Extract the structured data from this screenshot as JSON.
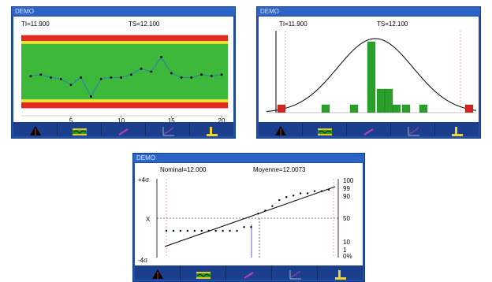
{
  "windows": {
    "control": {
      "title": "DEMO",
      "ti_label": "TI=11.900",
      "ts_label": "TS=12.100",
      "x_ticks": [
        "5",
        "10",
        "15",
        "20"
      ]
    },
    "histogram": {
      "title": "DEMO",
      "ti_label": "TI=11.900",
      "ts_label": "TS=12.100"
    },
    "henry": {
      "title": "DEMO",
      "nominal_label": "Nominal=12.000",
      "mean_label": "Moyenne=12.0073",
      "left_top": "+4σ",
      "left_x": "X",
      "left_bottom": "-4σ",
      "right_ticks": [
        "100",
        "99",
        "90",
        "50",
        "10",
        "1",
        "0%"
      ]
    }
  },
  "toolbar": {
    "buttons": [
      "triangle-icon",
      "control-chart-icon",
      "pencil-icon",
      "trend-icon",
      "capability-icon"
    ]
  },
  "chart_data": [
    {
      "type": "line",
      "x": [
        1,
        2,
        3,
        4,
        5,
        6,
        7,
        8,
        9,
        10,
        11,
        12,
        13,
        14,
        15,
        16,
        17,
        18,
        19,
        20
      ],
      "values": [
        11.985,
        11.99,
        11.98,
        11.975,
        11.955,
        11.98,
        11.915,
        11.975,
        11.98,
        11.98,
        11.99,
        12.01,
        12.0,
        12.05,
        11.995,
        11.98,
        11.98,
        11.99,
        11.985,
        11.99
      ],
      "ylim": [
        11.86,
        12.14
      ],
      "zones": {
        "red_outer": [
          11.875,
          11.895
        ],
        "yellow": [
          11.895,
          11.905
        ],
        "green": [
          11.905,
          12.095
        ],
        "yellow_top": [
          12.095,
          12.105
        ],
        "red_top": [
          12.105,
          12.125
        ]
      },
      "x_ticks": [
        5,
        10,
        15,
        20
      ]
    },
    {
      "type": "bar",
      "categories": [
        "out_low",
        "b1",
        "b2",
        "b3",
        "b4",
        "b5",
        "b6",
        "b7",
        "b8",
        "b9",
        "out_high"
      ],
      "values": [
        1,
        1,
        0,
        0,
        1,
        9,
        3,
        3,
        1,
        1,
        1
      ],
      "colors": [
        "#d81e1e",
        "#2aa02a",
        "#2aa02a",
        "#2aa02a",
        "#2aa02a",
        "#2aa02a",
        "#2aa02a",
        "#2aa02a",
        "#2aa02a",
        "#2aa02a",
        "#d81e1e"
      ]
    },
    {
      "type": "scatter",
      "y_pct_ticks": [
        100,
        99,
        90,
        50,
        10,
        1,
        0
      ],
      "points": [
        [
          12.0,
          22
        ],
        [
          12.002,
          22
        ],
        [
          12.004,
          22
        ],
        [
          12.006,
          22
        ],
        [
          12.008,
          22
        ],
        [
          12.01,
          25
        ],
        [
          12.012,
          25
        ],
        [
          12.014,
          25
        ],
        [
          12.016,
          25
        ],
        [
          12.018,
          25
        ],
        [
          12.02,
          25
        ],
        [
          12.022,
          30
        ],
        [
          12.024,
          30
        ],
        [
          12.026,
          48
        ],
        [
          12.028,
          52
        ],
        [
          12.03,
          58
        ],
        [
          12.032,
          66
        ],
        [
          12.034,
          70
        ],
        [
          12.036,
          72
        ],
        [
          12.038,
          75
        ],
        [
          12.04,
          75
        ],
        [
          12.042,
          78
        ],
        [
          12.044,
          78
        ],
        [
          12.046,
          80
        ]
      ],
      "regression_line": true
    }
  ]
}
